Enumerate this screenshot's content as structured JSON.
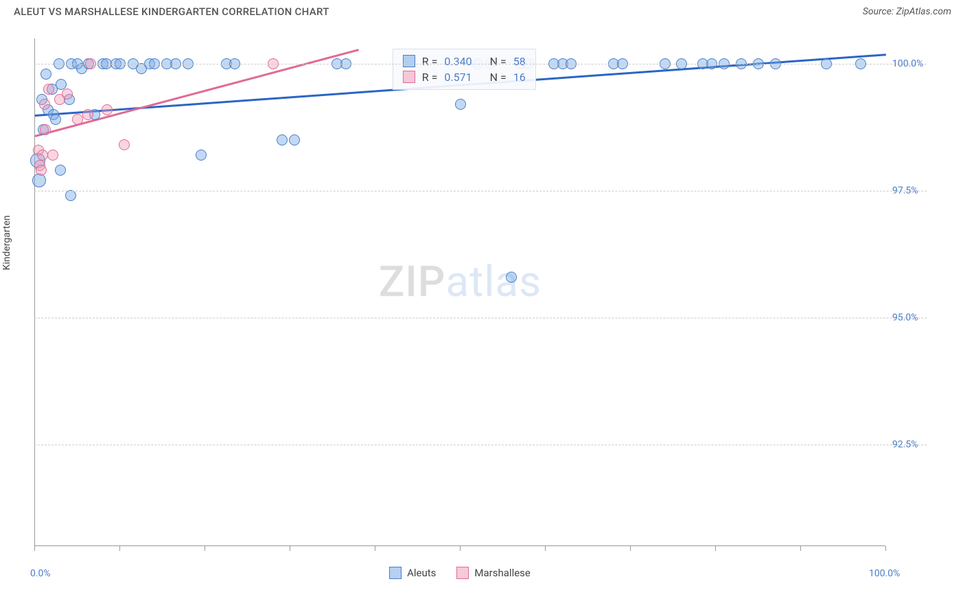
{
  "header": {
    "title": "ALEUT VS MARSHALLESE KINDERGARTEN CORRELATION CHART",
    "source": "Source: ZipAtlas.com"
  },
  "watermark": {
    "zip": "ZIP",
    "atlas": "atlas"
  },
  "chart": {
    "type": "scatter",
    "y_axis_title": "Kindergarten",
    "background_color": "#ffffff",
    "grid_color": "#cccccc",
    "axis_color": "#999999",
    "xlim": [
      0,
      100
    ],
    "ylim": [
      90.5,
      100.5
    ],
    "y_ticks": [
      {
        "value": 92.5,
        "label": "92.5%"
      },
      {
        "value": 95.0,
        "label": "95.0%"
      },
      {
        "value": 97.5,
        "label": "97.5%"
      },
      {
        "value": 100.0,
        "label": "100.0%"
      }
    ],
    "x_ticks": [
      0,
      10,
      20,
      30,
      40,
      50,
      60,
      70,
      80,
      90,
      100
    ],
    "x_min_label": "0.0%",
    "x_max_label": "100.0%",
    "y_label_color": "#4a7ec8",
    "x_label_color": "#4a7ec8",
    "series": [
      {
        "name": "Aleuts",
        "marker_fill": "rgba(120,170,230,0.45)",
        "marker_stroke": "#4a7ec8",
        "swatch_fill": "rgba(120,170,230,0.55)",
        "swatch_stroke": "#4a7ec8",
        "marker_size": 16,
        "trend": {
          "x1": 0,
          "y1": 99.0,
          "x2": 100,
          "y2": 100.2,
          "color": "#2a66c4",
          "width": 2.5
        },
        "stats": {
          "R": "0.340",
          "N": "58"
        },
        "points": [
          {
            "x": 0.3,
            "y": 98.1,
            "s": 22
          },
          {
            "x": 0.5,
            "y": 97.7,
            "s": 20
          },
          {
            "x": 0.8,
            "y": 99.3
          },
          {
            "x": 1.0,
            "y": 98.7
          },
          {
            "x": 1.3,
            "y": 99.8
          },
          {
            "x": 1.5,
            "y": 99.1
          },
          {
            "x": 2.0,
            "y": 99.5
          },
          {
            "x": 2.2,
            "y": 99.0
          },
          {
            "x": 2.4,
            "y": 98.9
          },
          {
            "x": 2.8,
            "y": 100.0
          },
          {
            "x": 3.0,
            "y": 97.9
          },
          {
            "x": 3.1,
            "y": 99.6
          },
          {
            "x": 4.0,
            "y": 99.3
          },
          {
            "x": 4.3,
            "y": 100.0
          },
          {
            "x": 4.2,
            "y": 97.4
          },
          {
            "x": 5.0,
            "y": 100.0
          },
          {
            "x": 5.5,
            "y": 99.9
          },
          {
            "x": 6.3,
            "y": 100.0
          },
          {
            "x": 7.0,
            "y": 99.0
          },
          {
            "x": 8.0,
            "y": 100.0
          },
          {
            "x": 8.4,
            "y": 100.0
          },
          {
            "x": 9.5,
            "y": 100.0
          },
          {
            "x": 10.0,
            "y": 100.0
          },
          {
            "x": 11.5,
            "y": 100.0
          },
          {
            "x": 12.5,
            "y": 99.9
          },
          {
            "x": 13.5,
            "y": 100.0
          },
          {
            "x": 14.0,
            "y": 100.0
          },
          {
            "x": 15.5,
            "y": 100.0
          },
          {
            "x": 16.5,
            "y": 100.0
          },
          {
            "x": 18.0,
            "y": 100.0
          },
          {
            "x": 19.5,
            "y": 98.2
          },
          {
            "x": 22.5,
            "y": 100.0
          },
          {
            "x": 23.5,
            "y": 100.0
          },
          {
            "x": 29.0,
            "y": 98.5
          },
          {
            "x": 30.5,
            "y": 98.5
          },
          {
            "x": 35.5,
            "y": 100.0
          },
          {
            "x": 36.5,
            "y": 100.0
          },
          {
            "x": 50.0,
            "y": 99.2
          },
          {
            "x": 52.0,
            "y": 100.0
          },
          {
            "x": 53.5,
            "y": 100.0
          },
          {
            "x": 56.0,
            "y": 95.8
          },
          {
            "x": 57.0,
            "y": 100.0
          },
          {
            "x": 58.0,
            "y": 100.0
          },
          {
            "x": 61.0,
            "y": 100.0
          },
          {
            "x": 62.0,
            "y": 100.0
          },
          {
            "x": 63.0,
            "y": 100.0
          },
          {
            "x": 68.0,
            "y": 100.0
          },
          {
            "x": 69.0,
            "y": 100.0
          },
          {
            "x": 74.0,
            "y": 100.0
          },
          {
            "x": 76.0,
            "y": 100.0
          },
          {
            "x": 78.5,
            "y": 100.0
          },
          {
            "x": 79.5,
            "y": 100.0
          },
          {
            "x": 81.0,
            "y": 100.0
          },
          {
            "x": 83.0,
            "y": 100.0
          },
          {
            "x": 85.0,
            "y": 100.0
          },
          {
            "x": 87.0,
            "y": 100.0
          },
          {
            "x": 93.0,
            "y": 100.0
          },
          {
            "x": 97.0,
            "y": 100.0
          }
        ]
      },
      {
        "name": "Marshallese",
        "marker_fill": "rgba(240,150,180,0.40)",
        "marker_stroke": "#e06a95",
        "swatch_fill": "rgba(240,150,180,0.50)",
        "swatch_stroke": "#e06a95",
        "marker_size": 16,
        "trend": {
          "x1": 0,
          "y1": 98.6,
          "x2": 38,
          "y2": 100.3,
          "color": "#e06a95",
          "width": 2.5
        },
        "stats": {
          "R": "0.571",
          "N": "16"
        },
        "points": [
          {
            "x": 0.4,
            "y": 98.3
          },
          {
            "x": 0.6,
            "y": 98.0
          },
          {
            "x": 0.7,
            "y": 97.9
          },
          {
            "x": 0.9,
            "y": 98.2
          },
          {
            "x": 1.1,
            "y": 99.2
          },
          {
            "x": 1.2,
            "y": 98.7
          },
          {
            "x": 1.6,
            "y": 99.5
          },
          {
            "x": 2.1,
            "y": 98.2
          },
          {
            "x": 2.9,
            "y": 99.3
          },
          {
            "x": 3.8,
            "y": 99.4
          },
          {
            "x": 5.0,
            "y": 98.9
          },
          {
            "x": 6.2,
            "y": 99.0
          },
          {
            "x": 6.5,
            "y": 100.0
          },
          {
            "x": 8.5,
            "y": 99.1
          },
          {
            "x": 10.5,
            "y": 98.4
          },
          {
            "x": 28.0,
            "y": 100.0
          }
        ]
      }
    ],
    "stats_box": {
      "left_pct": 42,
      "top_y": 100.3
    },
    "stats_labels": {
      "R": "R =",
      "N": "N ="
    },
    "legend": [
      {
        "series": 0,
        "label": "Aleuts"
      },
      {
        "series": 1,
        "label": "Marshallese"
      }
    ]
  }
}
